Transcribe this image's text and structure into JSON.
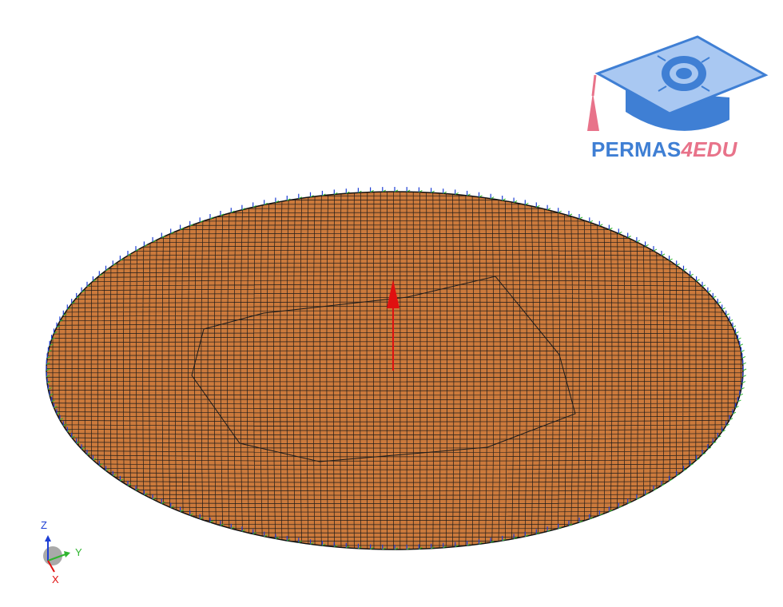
{
  "logo": {
    "brand_main": "PERMAS",
    "brand_accent": "4EDU",
    "color_main": "#3f7fd4",
    "color_accent": "#e8738a",
    "icon": "graduation-cap-logo"
  },
  "model": {
    "description_icon": "meshed-circular-plate",
    "plate_color": "#cc7a3c",
    "mesh_line_color": "#1a1a1a",
    "load_arrow_color": "#e01010"
  },
  "triad": {
    "z_label": "Z",
    "y_label": "Y",
    "x_label": "X",
    "z_color": "#1e3fd4",
    "y_color": "#2fb52f",
    "x_color": "#e01010"
  }
}
